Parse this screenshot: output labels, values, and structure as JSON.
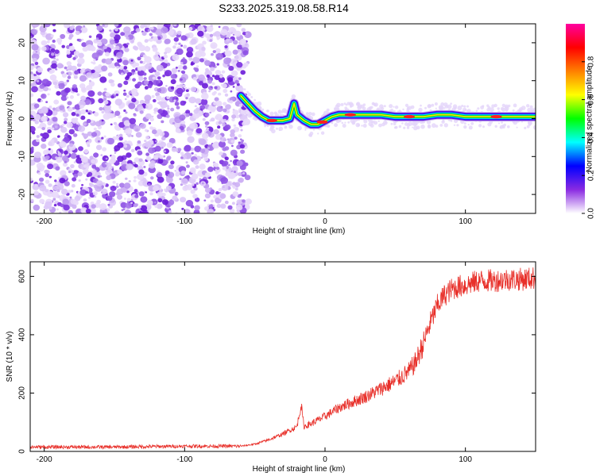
{
  "title": "S233.2025.319.08.58.R14",
  "chart_data": [
    {
      "type": "heatmap",
      "title": "S233.2025.319.08.58.R14",
      "xlabel": "Height of straight line (km)",
      "ylabel": "Frequency (Hz)",
      "xlim": [
        -210,
        150
      ],
      "ylim": [
        -25,
        25
      ],
      "xticks": [
        -200,
        -100,
        0,
        100
      ],
      "xtick_labels": [
        "-200",
        "-100",
        "0",
        "100"
      ],
      "yticks": [
        -20,
        -10,
        0,
        10,
        20
      ],
      "ytick_labels": [
        "-20",
        "-10",
        "0",
        "10",
        "20"
      ],
      "noise_region_x": [
        -210,
        -60
      ],
      "ridge": {
        "x": [
          -60,
          -55,
          -50,
          -45,
          -40,
          -35,
          -30,
          -25,
          -22,
          -20,
          -15,
          -10,
          -5,
          0,
          5,
          10,
          15,
          20,
          30,
          40,
          50,
          60,
          70,
          80,
          90,
          100,
          110,
          120,
          130,
          140,
          150
        ],
        "y": [
          6,
          4,
          2,
          0.5,
          -0.5,
          -0.5,
          -0.5,
          0,
          4,
          1,
          -0.5,
          -1.5,
          -1.5,
          -0.5,
          0.5,
          1,
          1,
          1,
          1,
          1,
          0.5,
          0.5,
          0.5,
          1,
          1,
          0.5,
          0.5,
          0.5,
          0.5,
          0.5,
          0.5
        ]
      },
      "colorbar": {
        "label": "Normalized spectral amplitude",
        "range": [
          0.0,
          1.0
        ],
        "ticks": [
          0.0,
          0.2,
          0.4,
          0.6,
          0.8
        ],
        "tick_labels": [
          "0.0",
          "0.2",
          "0.4",
          "0.6",
          "0.8"
        ],
        "colors": [
          "#ffffff",
          "#8a2be2",
          "#0000ff",
          "#00ffff",
          "#00ff00",
          "#ffff00",
          "#ff8000",
          "#ff0000",
          "#ff00a0"
        ]
      }
    },
    {
      "type": "line",
      "xlabel": "Height of straight line (km)",
      "ylabel": "SNR (10 * v/v)",
      "xlim": [
        -210,
        150
      ],
      "ylim": [
        0,
        650
      ],
      "xticks": [
        -200,
        -100,
        0,
        100
      ],
      "xtick_labels": [
        "-200",
        "-100",
        "0",
        "100"
      ],
      "yticks": [
        0,
        200,
        400,
        600
      ],
      "ytick_labels": [
        "0",
        "200",
        "400",
        "600"
      ],
      "color": "#e8302a",
      "series": [
        {
          "name": "SNR",
          "x": [
            -210,
            -150,
            -100,
            -60,
            -50,
            -40,
            -30,
            -20,
            -17,
            -15,
            -10,
            0,
            10,
            20,
            30,
            40,
            50,
            60,
            65,
            70,
            75,
            80,
            85,
            90,
            95,
            100,
            110,
            120,
            130,
            140,
            150
          ],
          "values": [
            15,
            15,
            18,
            18,
            25,
            40,
            60,
            85,
            160,
            85,
            95,
            120,
            150,
            170,
            190,
            215,
            240,
            275,
            310,
            370,
            440,
            500,
            535,
            555,
            565,
            570,
            585,
            585,
            590,
            590,
            595
          ]
        }
      ]
    }
  ]
}
